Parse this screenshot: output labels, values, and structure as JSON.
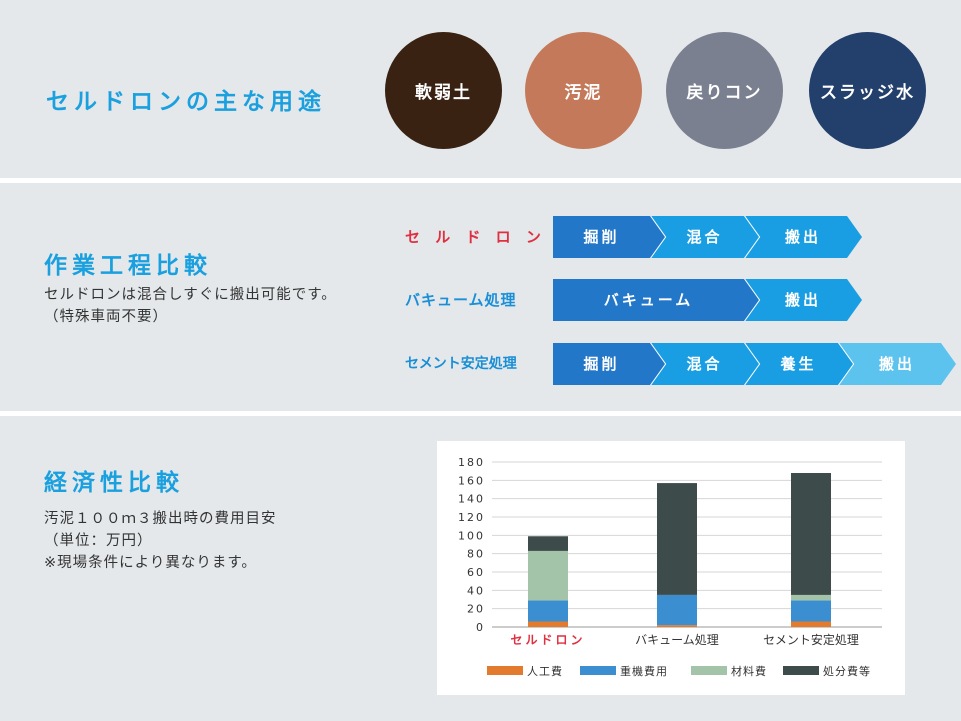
{
  "uses": {
    "title": "セルドロンの主な用途",
    "items": [
      {
        "label": "軟弱土",
        "color": "#3a2212"
      },
      {
        "label": "汚泥",
        "color": "#c47a5a"
      },
      {
        "label": "戻りコン",
        "color": "#7b8090"
      },
      {
        "label": "スラッジ水",
        "color": "#233f6b"
      }
    ]
  },
  "process": {
    "title": "作業工程比較",
    "description_line1": "セルドロンは混合しすぐに搬出可能です。",
    "description_line2": "（特殊車両不要）",
    "rows": [
      {
        "label": "セ ル ド ロ ン",
        "label_color": "#e03040",
        "steps": [
          "掘削",
          "混合",
          "搬出"
        ]
      },
      {
        "label": "バキューム処理",
        "label_color": "#1a8fd6",
        "steps": [
          "バキューム",
          "搬出"
        ]
      },
      {
        "label": "セメント安定処理",
        "label_color": "#1a8fd6",
        "steps": [
          "掘削",
          "混合",
          "養生",
          "搬出"
        ]
      }
    ],
    "colors": {
      "dark": "#2277c9",
      "mid": "#1a9ee3",
      "light": "#5cc3ee"
    }
  },
  "cost": {
    "title": "経済性比較",
    "description_line1": "汚泥１００ｍ３搬出時の費用目安",
    "description_line2": "（単位：万円）",
    "description_line3": "※現場条件により異なります。"
  },
  "chart_data": {
    "type": "bar",
    "stacked": true,
    "categories": [
      "セルドロン",
      "バキューム処理",
      "セメント安定処理"
    ],
    "category_colors": [
      "#e03040",
      "#333333",
      "#333333"
    ],
    "series": [
      {
        "name": "人工費",
        "color": "#e27b2e",
        "values": [
          6,
          2,
          6
        ]
      },
      {
        "name": "重機費用",
        "color": "#3b8fd0",
        "values": [
          23,
          33,
          23
        ]
      },
      {
        "name": "材料費",
        "color": "#a3c4a8",
        "values": [
          54,
          0,
          6
        ]
      },
      {
        "name": "処分費等",
        "color": "#3e4b4b",
        "values": [
          16,
          122,
          133
        ]
      }
    ],
    "ylim": [
      0,
      180
    ],
    "yticks": [
      0,
      20,
      40,
      60,
      80,
      100,
      120,
      140,
      160,
      180
    ],
    "grid": true,
    "legend": "bottom"
  }
}
